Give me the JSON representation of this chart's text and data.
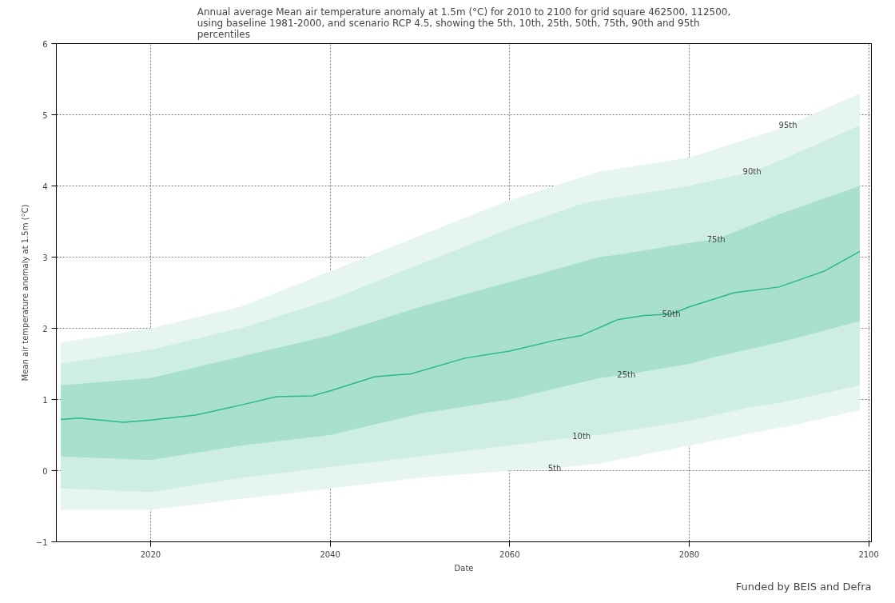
{
  "chart_data": {
    "type": "line",
    "title": "Annual average Mean air temperature anomaly at 1.5m (°C) for 2010 to 2100 for grid square 462500, 112500,\nusing baseline 1981-2000, and scenario RCP 4.5, showing the 5th, 10th, 25th, 50th, 75th, 90th and 95th\npercentiles",
    "xlabel": "Date",
    "ylabel": "Mean air temperature anomaly at 1.5m (°C)",
    "xlim": [
      2009.5,
      2100.3
    ],
    "xticks": [
      2020,
      2040,
      2060,
      2080,
      2100
    ],
    "ylim": [
      -1,
      6
    ],
    "yticks": [
      -1,
      0,
      1,
      2,
      3,
      4,
      5,
      6
    ],
    "grid": true,
    "line_style": "solid",
    "series": [
      {
        "color": "#e6f6ef",
        "x": [
          2010,
          2020,
          2030,
          2040,
          2050,
          2060,
          2065,
          2070,
          2080,
          2090,
          2091,
          2099
        ],
        "values": [
          null,
          null,
          null,
          null,
          null,
          null,
          null,
          null,
          null,
          null,
          null,
          null
        ],
        "upper": [
          1.8,
          2.0,
          2.3,
          2.8,
          3.3,
          3.8,
          4.0,
          4.2,
          4.4,
          4.8,
          4.85,
          5.3
        ],
        "lower": [
          -0.55,
          -0.55,
          -0.4,
          -0.25,
          -0.1,
          0.0,
          0.03,
          0.1,
          0.35,
          0.6,
          0.62,
          0.85
        ]
      },
      {
        "color": "#cdeee1",
        "x": [
          2010,
          2020,
          2030,
          2040,
          2050,
          2060,
          2068,
          2070,
          2080,
          2087,
          2090,
          2099
        ],
        "values": [
          null,
          null,
          null,
          null,
          null,
          null,
          null,
          null,
          null,
          null,
          null,
          null
        ],
        "upper": [
          1.5,
          1.7,
          2.0,
          2.4,
          2.9,
          3.4,
          3.75,
          3.8,
          4.0,
          4.2,
          4.35,
          4.85
        ],
        "lower": [
          -0.25,
          -0.3,
          -0.1,
          0.05,
          0.2,
          0.35,
          0.48,
          0.5,
          0.7,
          0.9,
          0.95,
          1.2
        ]
      },
      {
        "color": "#a8e0cb",
        "x": [
          2010,
          2020,
          2030,
          2040,
          2050,
          2060,
          2070,
          2073,
          2080,
          2083,
          2090,
          2099
        ],
        "values": [
          null,
          null,
          null,
          null,
          null,
          null,
          null,
          null,
          null,
          null,
          null,
          null
        ],
        "upper": [
          1.2,
          1.3,
          1.6,
          1.9,
          2.3,
          2.65,
          3.0,
          3.05,
          3.2,
          3.25,
          3.6,
          4.0
        ],
        "lower": [
          0.2,
          0.15,
          0.35,
          0.5,
          0.8,
          1.0,
          1.3,
          1.35,
          1.5,
          1.6,
          1.8,
          2.1
        ]
      },
      {
        "color": "#2ab98a",
        "x": [
          2010,
          2012,
          2017,
          2020,
          2025,
          2030,
          2034,
          2038,
          2040,
          2045,
          2049,
          2055,
          2060,
          2065,
          2068,
          2072,
          2075,
          2078,
          2080,
          2085,
          2090,
          2095,
          2099
        ],
        "values": [
          0.72,
          0.74,
          0.68,
          0.71,
          0.78,
          0.92,
          1.04,
          1.05,
          1.12,
          1.32,
          1.36,
          1.58,
          1.68,
          1.83,
          1.9,
          2.12,
          2.18,
          2.2,
          2.3,
          2.5,
          2.58,
          2.8,
          3.08
        ]
      }
    ],
    "annotations": [
      {
        "text": "5th",
        "x": 2065,
        "y": 0.03
      },
      {
        "text": "10th",
        "x": 2068,
        "y": 0.48
      },
      {
        "text": "25th",
        "x": 2073,
        "y": 1.35
      },
      {
        "text": "50th",
        "x": 2078,
        "y": 2.2
      },
      {
        "text": "75th",
        "x": 2083,
        "y": 3.25
      },
      {
        "text": "90th",
        "x": 2087,
        "y": 4.2
      },
      {
        "text": "95th",
        "x": 2091,
        "y": 4.85
      },
      "Funded by BEIS and Defra"
    ]
  }
}
